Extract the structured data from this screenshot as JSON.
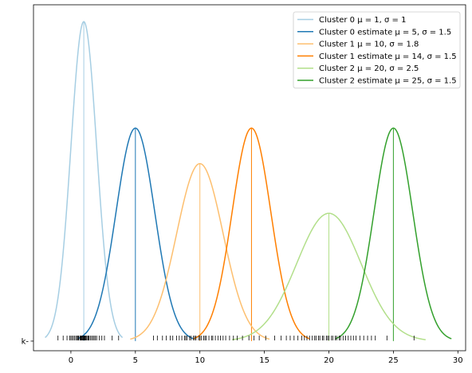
{
  "chart_data": {
    "type": "line",
    "title": "",
    "xlabel": "",
    "ylabel": "",
    "xlim": [
      -2.9,
      30.6
    ],
    "ylim": [
      -0.012,
      0.42
    ],
    "xticks": [
      0,
      5,
      10,
      15,
      20,
      25,
      30
    ],
    "xtick_labels": [
      "0",
      "5",
      "10",
      "15",
      "20",
      "25",
      "30"
    ],
    "ytick_labels": [
      "k-"
    ],
    "grid": false,
    "legend_position": "top-right",
    "series": [
      {
        "name": "Cluster 0 μ = 1, σ = 1",
        "mu": 1,
        "sigma": 1,
        "x_start": -2,
        "x_end": 4,
        "color": "#a6cee3",
        "mean_line": true
      },
      {
        "name": "Cluster 0 estimate μ = 5, σ = 1.5",
        "mu": 5,
        "sigma": 1.5,
        "x_start": 0.5,
        "x_end": 9.5,
        "color": "#1f78b4",
        "mean_line": true
      },
      {
        "name": "Cluster 1 μ = 10, σ = 1.8",
        "mu": 10,
        "sigma": 1.8,
        "x_start": 4.6,
        "x_end": 15.4,
        "color": "#fdbf6f",
        "mean_line": true
      },
      {
        "name": "Cluster 1 estimate μ = 14, σ = 1.5",
        "mu": 14,
        "sigma": 1.5,
        "x_start": 9.5,
        "x_end": 18.5,
        "color": "#ff7f00",
        "mean_line": true
      },
      {
        "name": "Cluster 2 μ = 20, σ = 2.5",
        "mu": 20,
        "sigma": 2.5,
        "x_start": 12.5,
        "x_end": 27.5,
        "color": "#b2df8a",
        "mean_line": true
      },
      {
        "name": "Cluster 2 estimate μ = 25, σ = 1.5",
        "mu": 25,
        "sigma": 1.5,
        "x_start": 20.5,
        "x_end": 29.5,
        "color": "#33a02c",
        "mean_line": true
      }
    ],
    "rug": {
      "color": "#000000",
      "values": [
        -1.0,
        -0.6,
        -0.3,
        -0.1,
        0.0,
        0.1,
        0.2,
        0.3,
        0.4,
        0.5,
        0.55,
        0.6,
        0.7,
        0.75,
        0.8,
        0.85,
        0.9,
        0.95,
        1.0,
        1.05,
        1.1,
        1.15,
        1.2,
        1.3,
        1.35,
        1.4,
        1.5,
        1.6,
        1.7,
        1.8,
        1.9,
        2.0,
        2.2,
        2.4,
        2.6,
        3.2,
        3.7,
        6.4,
        6.7,
        7.1,
        7.4,
        7.7,
        7.9,
        8.2,
        8.4,
        8.6,
        8.8,
        8.9,
        9.0,
        9.2,
        9.3,
        9.5,
        9.6,
        9.7,
        9.9,
        10.0,
        10.1,
        10.3,
        10.4,
        10.5,
        10.7,
        10.9,
        11.0,
        11.2,
        11.4,
        11.6,
        11.8,
        12.0,
        12.3,
        12.6,
        12.9,
        13.3,
        13.8,
        14.2,
        14.6,
        15.1,
        15.8,
        16.3,
        16.7,
        17.0,
        17.3,
        17.6,
        17.9,
        18.1,
        18.3,
        18.5,
        18.7,
        18.9,
        19.0,
        19.2,
        19.3,
        19.5,
        19.6,
        19.8,
        19.9,
        20.0,
        20.2,
        20.3,
        20.5,
        20.6,
        20.8,
        20.9,
        21.1,
        21.3,
        21.5,
        21.7,
        21.9,
        22.1,
        22.4,
        22.7,
        23.0,
        23.3,
        23.6,
        24.5,
        26.6
      ]
    }
  }
}
